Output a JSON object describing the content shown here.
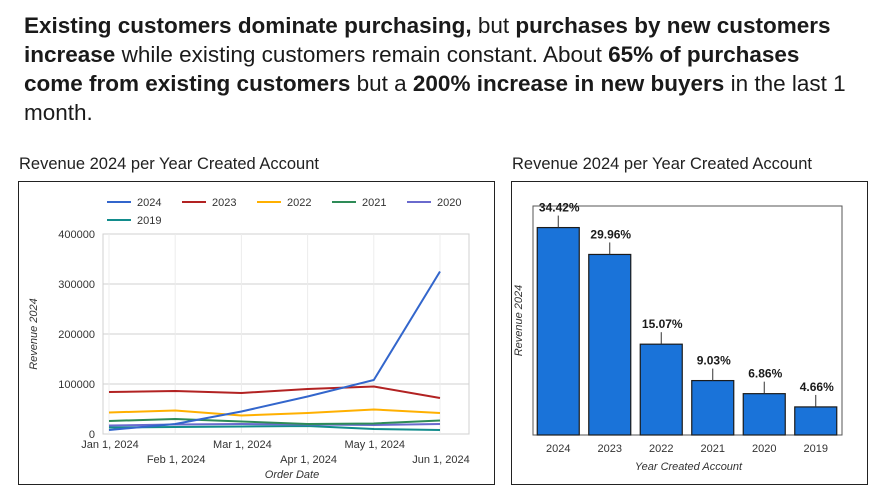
{
  "headline": [
    {
      "text": "Existing customers dominate purchasing,",
      "bold": true
    },
    {
      "text": " but ",
      "bold": false
    },
    {
      "text": "purchases by new customers increase",
      "bold": true
    },
    {
      "text": " while existing customers remain constant. About ",
      "bold": false
    },
    {
      "text": "65% of purchases come from existing customers",
      "bold": true
    },
    {
      "text": " but a ",
      "bold": false
    },
    {
      "text": "200% increase in new buyers",
      "bold": true
    },
    {
      "text": " in the last 1 month.",
      "bold": false
    }
  ],
  "colors": {
    "2024": "#3366cc",
    "2023": "#b22222",
    "2022": "#ffb000",
    "2021": "#2e8b57",
    "2020": "#6a6acd",
    "2019": "#128c8c",
    "bar": "#1a73d9"
  },
  "chart_data": [
    {
      "type": "line",
      "title": "Revenue 2024 per Year Created Account",
      "xlabel": "Order Date",
      "ylabel": "Revenue 2024",
      "x": [
        "Jan 1, 2024",
        "Feb 1, 2024",
        "Mar 1, 2024",
        "Apr 1, 2024",
        "May 1, 2024",
        "Jun 1, 2024"
      ],
      "xticks_row1": [
        "Jan 1, 2024",
        "Mar 1, 2024",
        "May 1, 2024"
      ],
      "xticks_row2": [
        "Feb 1, 2024",
        "Apr 1, 2024",
        "Jun 1, 2024"
      ],
      "yticks": [
        "0",
        "100000",
        "200000",
        "300000",
        "400000"
      ],
      "ylim": [
        0,
        400000
      ],
      "grid": true,
      "legend": "top",
      "series": [
        {
          "name": "2024",
          "values": [
            8000,
            20000,
            45000,
            75000,
            108000,
            325000
          ]
        },
        {
          "name": "2023",
          "values": [
            84000,
            86000,
            82000,
            90000,
            95000,
            72000
          ]
        },
        {
          "name": "2022",
          "values": [
            43000,
            47000,
            37000,
            42000,
            49000,
            42000
          ]
        },
        {
          "name": "2021",
          "values": [
            26000,
            30000,
            25000,
            20000,
            21000,
            27000
          ]
        },
        {
          "name": "2020",
          "values": [
            17000,
            19000,
            20000,
            19000,
            18000,
            20000
          ]
        },
        {
          "name": "2019",
          "values": [
            13000,
            14000,
            15000,
            16000,
            10000,
            8000
          ]
        }
      ]
    },
    {
      "type": "bar",
      "title": "Revenue 2024 per Year Created Account",
      "xlabel": "Year Created Account",
      "ylabel": "Revenue 2024",
      "categories": [
        "2024",
        "2023",
        "2022",
        "2021",
        "2020",
        "2019"
      ],
      "values": [
        34.42,
        29.96,
        15.07,
        9.03,
        6.86,
        4.66
      ],
      "labels": [
        "34.42%",
        "29.96%",
        "15.07%",
        "9.03%",
        "6.86%",
        "4.66%"
      ],
      "ylim": [
        0,
        38
      ]
    }
  ]
}
